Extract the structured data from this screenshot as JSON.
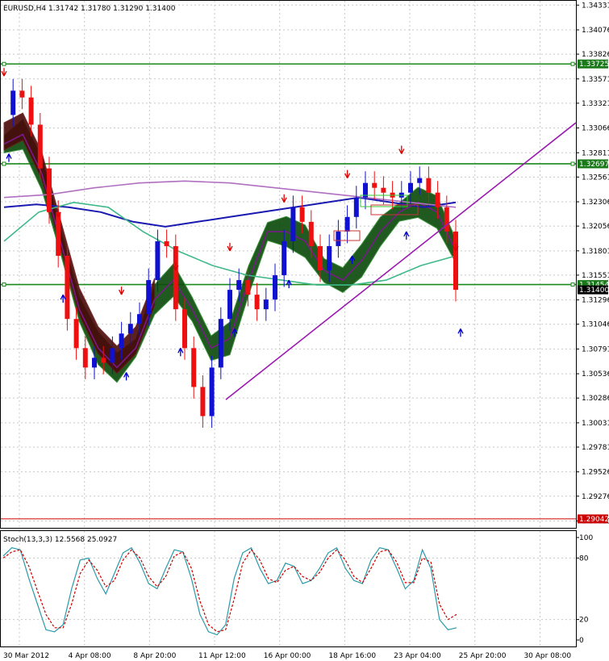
{
  "window": {
    "title": "EURUSD,H4  1.31742 1.31780 1.31290 1.31400"
  },
  "chart_data": [
    {
      "type": "line",
      "chart_kind": "candlestick",
      "symbol": "EURUSD",
      "timeframe": "H4",
      "ohlc_latest": {
        "open": 1.31742,
        "high": 1.3178,
        "low": 1.3129,
        "close": 1.314
      },
      "ylim": [
        1.2895,
        1.34375
      ],
      "y_ticks": [
        "1.34331",
        "1.34076",
        "1.33826",
        "1.33571",
        "1.33321",
        "1.33066",
        "1.32811",
        "1.32561",
        "1.32306",
        "1.32056",
        "1.31801",
        "1.31551",
        "1.31296",
        "1.31046",
        "1.30791",
        "1.30536",
        "1.30286",
        "1.30031",
        "1.29781",
        "1.29526",
        "1.29276",
        "1.29021"
      ],
      "x_ticks": [
        "30 Mar 2012",
        "4 Apr 08:00",
        "8 Apr 20:00",
        "11 Apr 12:00",
        "16 Apr 00:00",
        "18 Apr 16:00",
        "23 Apr 04:00",
        "25 Apr 20:00",
        "30 Apr 08:00"
      ],
      "price_tags": [
        {
          "value": 1.33725,
          "label": "1.33725",
          "color": "#1a7a1a"
        },
        {
          "value": 1.32697,
          "label": "1.32697",
          "color": "#1a7a1a"
        },
        {
          "value": 1.31454,
          "label": "1.31454",
          "color": "#1a7a1a"
        },
        {
          "value": 1.314,
          "label": "1.31400",
          "color": "#000000"
        },
        {
          "value": 1.29042,
          "label": "1.29042",
          "color": "#cc0000"
        }
      ],
      "horizontal_lines": [
        1.33725,
        1.32697,
        1.31454
      ],
      "series": [
        {
          "kind": "close",
          "values": [
            1.332,
            1.3345,
            1.3338,
            1.331,
            1.3265,
            1.322,
            1.3175,
            1.311,
            1.308,
            1.306,
            1.307,
            1.3065,
            1.308,
            1.3095,
            1.3105,
            1.3115,
            1.315,
            1.319,
            1.3185,
            1.312,
            1.308,
            1.304,
            1.301,
            1.306,
            1.311,
            1.314,
            1.315,
            1.3135,
            1.312,
            1.313,
            1.3155,
            1.319,
            1.3225,
            1.321,
            1.3185,
            1.316,
            1.3185,
            1.32,
            1.3215,
            1.3235,
            1.325,
            1.3245,
            1.324,
            1.3235,
            1.324,
            1.325,
            1.3255,
            1.324,
            1.3225,
            1.32,
            1.314
          ]
        },
        {
          "kind": "moving-average-1",
          "values": [
            1.329,
            1.33,
            1.326,
            1.319,
            1.312,
            1.308,
            1.306,
            1.308,
            1.313,
            1.315,
            1.312,
            1.308,
            1.309,
            1.315,
            1.32,
            1.32,
            1.319,
            1.316,
            1.315,
            1.317,
            1.32,
            1.322,
            1.323,
            1.322,
            1.318
          ]
        },
        {
          "kind": "moving-average-2",
          "values": [
            1.3225,
            1.3228,
            1.3225,
            1.322,
            1.321,
            1.3205,
            1.321,
            1.3215,
            1.322,
            1.3225,
            1.323,
            1.3235,
            1.323,
            1.3225,
            1.323
          ]
        },
        {
          "kind": "moving-average-3",
          "values": [
            1.319,
            1.322,
            1.323,
            1.3225,
            1.32,
            1.318,
            1.3165,
            1.3155,
            1.315,
            1.3145,
            1.3145,
            1.315,
            1.3165,
            1.3175
          ]
        },
        {
          "kind": "moving-average-4",
          "values": [
            1.3235,
            1.3238,
            1.3245,
            1.325,
            1.3252,
            1.325,
            1.3245,
            1.324,
            1.3235,
            1.323,
            1.3225
          ]
        },
        {
          "kind": "trendline",
          "values": [
            1.3027,
            1.3312
          ]
        }
      ],
      "arrow_count_up": 9,
      "arrow_count_down": 9,
      "ichimoku_cloud": true,
      "grid": true
    },
    {
      "type": "line",
      "title": "Stoch(13,3,3) 12.5568 25.0927",
      "ylim": [
        0,
        100
      ],
      "y_ticks": [
        "100",
        "80",
        "20",
        "0"
      ],
      "levels": [
        80,
        20
      ],
      "series": [
        {
          "name": "main",
          "color": "#2a9aa8",
          "values": [
            82,
            90,
            88,
            60,
            35,
            10,
            8,
            15,
            50,
            78,
            80,
            60,
            45,
            65,
            85,
            90,
            75,
            55,
            50,
            70,
            88,
            86,
            60,
            25,
            8,
            5,
            15,
            60,
            85,
            90,
            70,
            55,
            58,
            75,
            72,
            55,
            58,
            70,
            85,
            90,
            70,
            58,
            55,
            78,
            90,
            88,
            70,
            50,
            58,
            88,
            70,
            20,
            10,
            12
          ]
        },
        {
          "name": "signal",
          "color": "#cc0000",
          "values": [
            80,
            86,
            88,
            72,
            48,
            25,
            12,
            12,
            35,
            65,
            78,
            68,
            52,
            58,
            78,
            88,
            80,
            62,
            52,
            62,
            82,
            86,
            70,
            38,
            15,
            8,
            10,
            40,
            75,
            88,
            78,
            60,
            56,
            68,
            72,
            62,
            58,
            66,
            80,
            88,
            78,
            62,
            56,
            70,
            86,
            88,
            76,
            56,
            56,
            80,
            76,
            35,
            20,
            25
          ]
        }
      ]
    }
  ]
}
